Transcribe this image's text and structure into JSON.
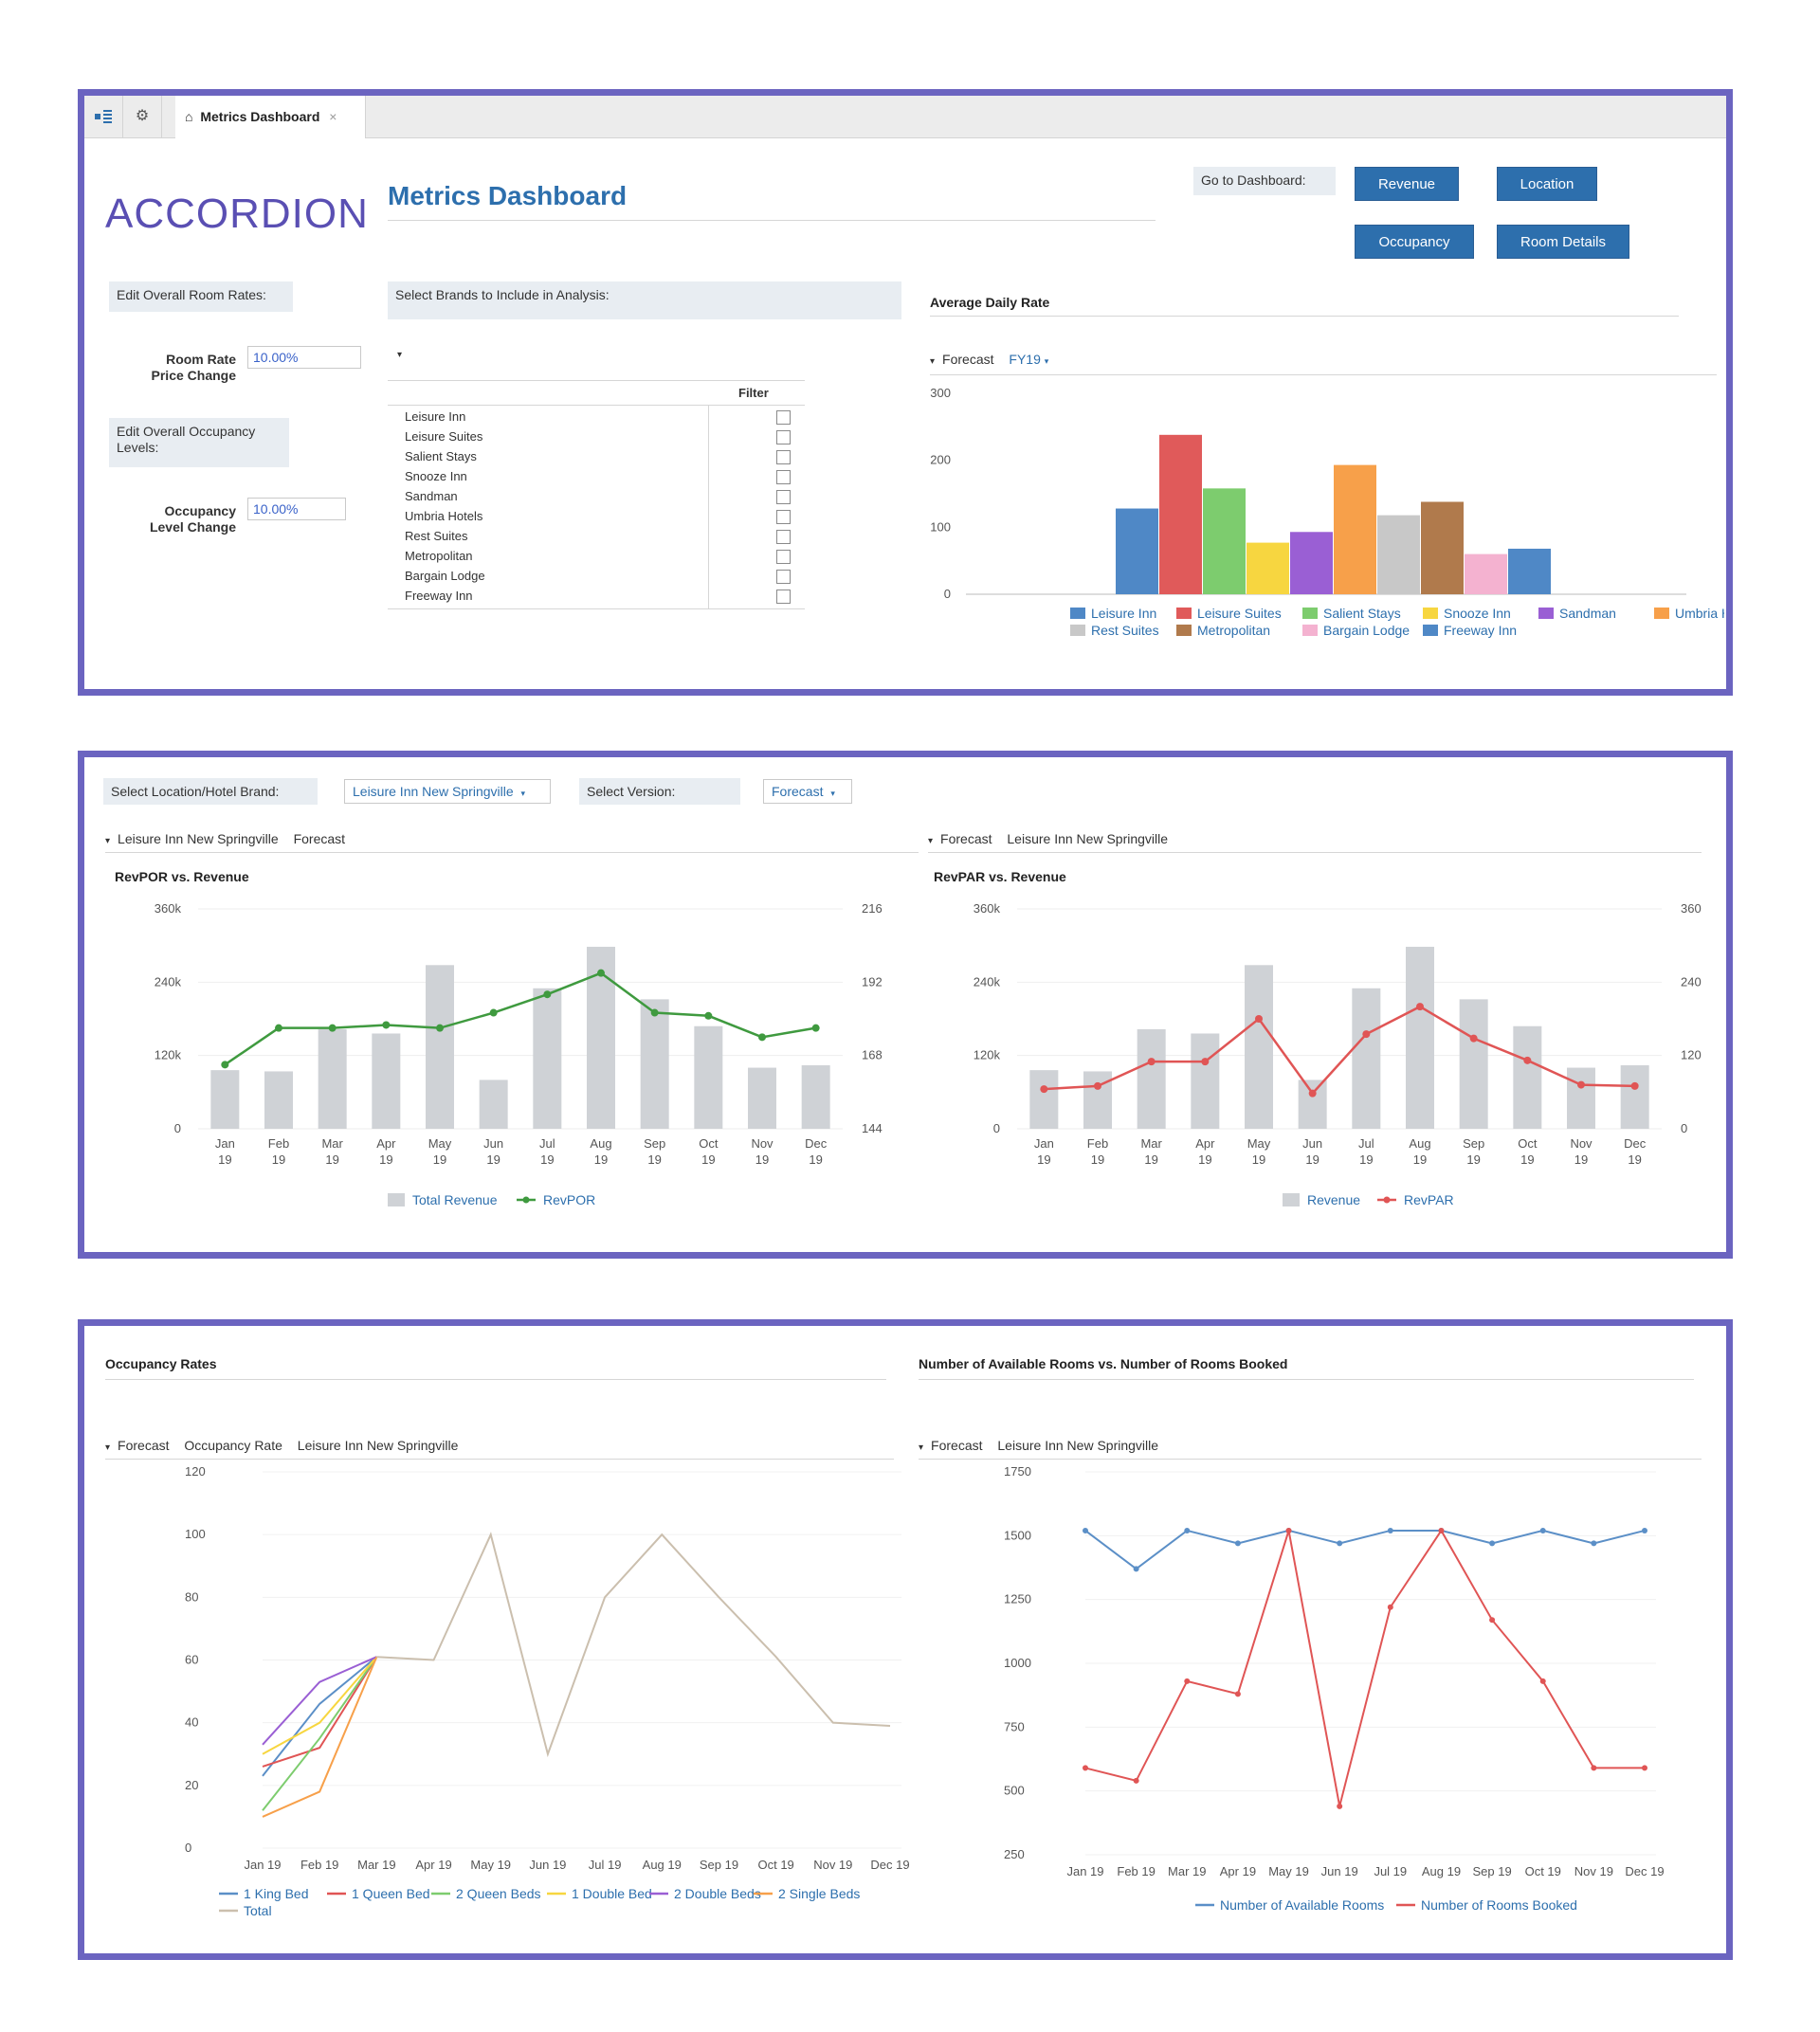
{
  "tab": {
    "title": "Metrics Dashboard",
    "close": "×"
  },
  "logo": "ACCORDION",
  "page_title": "Metrics Dashboard",
  "goto": {
    "label": "Go to Dashboard:",
    "buttons": [
      "Revenue",
      "Location",
      "Occupancy",
      "Room Details"
    ]
  },
  "room_rates": {
    "section_label": "Edit Overall Room Rates:",
    "field_label_1": "Room Rate",
    "field_label_2": "Price Change",
    "value": "10.00%"
  },
  "occupancy": {
    "section_label_1": "Edit Overall Occupancy",
    "section_label_2": "Levels:",
    "field_label_1": "Occupancy",
    "field_label_2": "Level Change",
    "value": "10.00%"
  },
  "brands": {
    "section_label": "Select Brands to Include in Analysis:",
    "filter_header": "Filter",
    "items": [
      "Leisure Inn",
      "Leisure Suites",
      "Salient Stays",
      "Snooze Inn",
      "Sandman",
      "Umbria Hotels",
      "Rest Suites",
      "Metropolitan",
      "Bargain Lodge",
      "Freeway Inn"
    ]
  },
  "adr": {
    "title": "Average Daily Rate",
    "crumb_1": "Forecast",
    "crumb_2": "FY19"
  },
  "location": {
    "label": "Select Location/Hotel Brand:",
    "value": "Leisure Inn New Springville",
    "version_label": "Select Version:",
    "version_value": "Forecast"
  },
  "revpor_panel": {
    "crumb_1": "Leisure Inn New Springville",
    "crumb_2": "Forecast",
    "title": "RevPOR vs. Revenue"
  },
  "revpar_panel": {
    "crumb_1": "Forecast",
    "crumb_2": "Leisure Inn New Springville",
    "title": "RevPAR vs. Revenue"
  },
  "occ_panel": {
    "title": "Occupancy Rates",
    "crumb_1": "Forecast",
    "crumb_2": "Occupancy Rate",
    "crumb_3": "Leisure Inn New Springville"
  },
  "rooms_panel": {
    "title": "Number of Available Rooms vs. Number of Rooms Booked",
    "crumb_1": "Forecast",
    "crumb_2": "Leisure Inn New Springville"
  },
  "colors": {
    "accent": "#2d6fad",
    "frame": "#6b64c0",
    "bar_gray": "#cfd2d6",
    "green": "#3f9a3f",
    "red": "#e05555",
    "blue": "#5b8fc7"
  },
  "chart_data": [
    {
      "id": "adr",
      "type": "bar",
      "ylim": [
        0,
        300
      ],
      "yticks": [
        "0",
        "100",
        "200",
        "300"
      ],
      "categories": [
        "Leisure Inn",
        "Leisure Suites",
        "Salient Stays",
        "Snooze Inn",
        "Sandman",
        "Umbria Hotels",
        "Rest Suites",
        "Metropolitan",
        "Bargain Lodge",
        "Freeway Inn"
      ],
      "values": [
        128,
        238,
        158,
        77,
        93,
        193,
        118,
        138,
        60,
        68
      ],
      "bar_colors": [
        "#4f88c6",
        "#e05a5a",
        "#7dcc6e",
        "#f7d640",
        "#9a5fd4",
        "#f7a04a",
        "#c8c8c8",
        "#b07a4c",
        "#f4b2d0",
        "#4f88c6"
      ],
      "legend": [
        "Leisure Inn",
        "Leisure Suites",
        "Salient Stays",
        "Snooze Inn",
        "Sandman",
        "Umbria Hotels",
        "Rest Suites",
        "Metropolitan",
        "Bargain Lodge",
        "Freeway Inn"
      ]
    },
    {
      "id": "revpor",
      "type": "bar",
      "categories": [
        "Jan 19",
        "Feb 19",
        "Mar 19",
        "Apr 19",
        "May 19",
        "Jun 19",
        "Jul 19",
        "Aug 19",
        "Sep 19",
        "Oct 19",
        "Nov 19",
        "Dec 19"
      ],
      "ylim": [
        0,
        360000
      ],
      "yticks": [
        "0",
        "120k",
        "240k",
        "360k"
      ],
      "y2lim": [
        144,
        216
      ],
      "y2ticks": [
        "144",
        "168",
        "192",
        "216"
      ],
      "series": [
        {
          "name": "Total Revenue",
          "kind": "bar",
          "values": [
            96000,
            94000,
            163000,
            156000,
            268000,
            80000,
            230000,
            298000,
            212000,
            168000,
            100000,
            104000
          ]
        },
        {
          "name": "RevPOR",
          "kind": "line",
          "axis": "y2",
          "values": [
            165,
            177,
            177,
            178,
            177,
            182,
            188,
            195,
            182,
            181,
            174,
            177
          ]
        }
      ]
    },
    {
      "id": "revpar",
      "type": "bar",
      "categories": [
        "Jan 19",
        "Feb 19",
        "Mar 19",
        "Apr 19",
        "May 19",
        "Jun 19",
        "Jul 19",
        "Aug 19",
        "Sep 19",
        "Oct 19",
        "Nov 19",
        "Dec 19"
      ],
      "ylim": [
        0,
        360000
      ],
      "yticks": [
        "0",
        "120k",
        "240k",
        "360k"
      ],
      "y2lim": [
        0,
        360
      ],
      "y2ticks": [
        "0",
        "120",
        "240",
        "360"
      ],
      "series": [
        {
          "name": "Revenue",
          "kind": "bar",
          "values": [
            96000,
            94000,
            163000,
            156000,
            268000,
            80000,
            230000,
            298000,
            212000,
            168000,
            100000,
            104000
          ]
        },
        {
          "name": "RevPAR",
          "kind": "line",
          "axis": "y2",
          "values": [
            65,
            70,
            110,
            110,
            180,
            58,
            155,
            200,
            148,
            112,
            72,
            70
          ]
        }
      ]
    },
    {
      "id": "occupancy",
      "type": "line",
      "categories": [
        "Jan 19",
        "Feb 19",
        "Mar 19",
        "Apr 19",
        "May 19",
        "Jun 19",
        "Jul 19",
        "Aug 19",
        "Sep 19",
        "Oct 19",
        "Nov 19",
        "Dec 19"
      ],
      "ylim": [
        0,
        120
      ],
      "yticks": [
        "0",
        "20",
        "40",
        "60",
        "80",
        "100",
        "120"
      ],
      "series": [
        {
          "name": "1 King Bed",
          "color": "#5b8fc7",
          "values": [
            23,
            46,
            61,
            null,
            null,
            null,
            null,
            null,
            null,
            null,
            null,
            null
          ]
        },
        {
          "name": "1 Queen Bed",
          "color": "#e05555",
          "values": [
            26,
            32,
            61,
            null,
            null,
            null,
            null,
            null,
            null,
            null,
            null,
            null
          ]
        },
        {
          "name": "2 Queen Beds",
          "color": "#7dcc6e",
          "values": [
            12,
            35,
            61,
            null,
            null,
            null,
            null,
            null,
            null,
            null,
            null,
            null
          ]
        },
        {
          "name": "1 Double Bed",
          "color": "#f7d640",
          "values": [
            30,
            40,
            61,
            null,
            null,
            null,
            null,
            null,
            null,
            null,
            null,
            null
          ]
        },
        {
          "name": "2 Double Beds",
          "color": "#9a5fd4",
          "values": [
            33,
            53,
            61,
            null,
            null,
            null,
            null,
            null,
            null,
            null,
            null,
            null
          ]
        },
        {
          "name": "2 Single Beds",
          "color": "#f7a04a",
          "values": [
            10,
            18,
            61,
            null,
            null,
            null,
            null,
            null,
            null,
            null,
            null,
            null
          ]
        },
        {
          "name": "Total",
          "color": "#cbbfae",
          "values": [
            null,
            null,
            61,
            60,
            100,
            30,
            80,
            100,
            80,
            61,
            40,
            39
          ]
        }
      ]
    },
    {
      "id": "rooms",
      "type": "line",
      "categories": [
        "Jan 19",
        "Feb 19",
        "Mar 19",
        "Apr 19",
        "May 19",
        "Jun 19",
        "Jul 19",
        "Aug 19",
        "Sep 19",
        "Oct 19",
        "Nov 19",
        "Dec 19"
      ],
      "ylim": [
        250,
        1750
      ],
      "yticks": [
        "250",
        "500",
        "750",
        "1000",
        "1250",
        "1500",
        "1750"
      ],
      "series": [
        {
          "name": "Number of Available Rooms",
          "color": "#5b8fc7",
          "values": [
            1520,
            1370,
            1520,
            1470,
            1520,
            1470,
            1520,
            1520,
            1470,
            1520,
            1470,
            1520
          ]
        },
        {
          "name": "Number of Rooms Booked",
          "color": "#e05555",
          "values": [
            590,
            540,
            930,
            880,
            1520,
            440,
            1220,
            1520,
            1170,
            930,
            590,
            590
          ]
        }
      ]
    }
  ]
}
